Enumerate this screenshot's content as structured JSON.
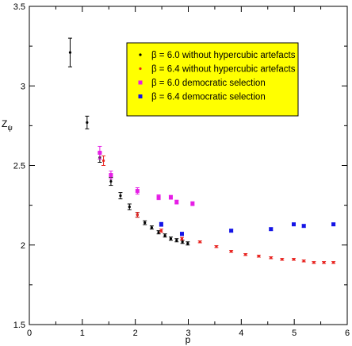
{
  "chart_data": {
    "type": "scatter",
    "title": "",
    "xlabel": "p",
    "ylabel": "Z",
    "ylabel_subscript": "ψ",
    "xlim": [
      0,
      6
    ],
    "ylim": [
      1.5,
      3.5
    ],
    "x_ticks": [
      0,
      1,
      2,
      3,
      4,
      5,
      6
    ],
    "y_ticks": [
      1.5,
      2,
      2.5,
      3,
      3.5
    ],
    "x_tick_labels": [
      "0",
      "1",
      "2",
      "3",
      "4",
      "5",
      "6"
    ],
    "y_tick_labels": [
      "1.5",
      "2",
      "2.5",
      "3",
      "3.5"
    ],
    "grid": false,
    "error_bars": true,
    "legend": {
      "placement": "top-right",
      "background": "#ffff00",
      "entries": [
        "β = 6.0  without hypercubic artefacts",
        "β = 6.4  without hypercubic artefacts",
        "β = 6.0  democratic selection",
        "β = 6.4  democratic selection"
      ]
    },
    "series": [
      {
        "name": "β = 6.0  without hypercubic artefacts",
        "color": "#000000",
        "marker": "dot",
        "points": [
          {
            "x": 0.77,
            "y": 3.21,
            "err": 0.09
          },
          {
            "x": 1.09,
            "y": 2.77,
            "err": 0.04
          },
          {
            "x": 1.33,
            "y": 2.55,
            "err": 0.03
          },
          {
            "x": 1.54,
            "y": 2.4,
            "err": 0.025
          },
          {
            "x": 1.72,
            "y": 2.31,
            "err": 0.02
          },
          {
            "x": 1.89,
            "y": 2.24,
            "err": 0.018
          },
          {
            "x": 2.04,
            "y": 2.19,
            "err": 0.015
          },
          {
            "x": 2.18,
            "y": 2.14,
            "err": 0.012
          },
          {
            "x": 2.31,
            "y": 2.11,
            "err": 0.01
          },
          {
            "x": 2.44,
            "y": 2.08,
            "err": 0.01
          },
          {
            "x": 2.56,
            "y": 2.06,
            "err": 0.01
          },
          {
            "x": 2.67,
            "y": 2.04,
            "err": 0.01
          },
          {
            "x": 2.78,
            "y": 2.03,
            "err": 0.01
          },
          {
            "x": 2.89,
            "y": 2.02,
            "err": 0.01
          },
          {
            "x": 2.99,
            "y": 2.01,
            "err": 0.01
          }
        ]
      },
      {
        "name": "β = 6.4  without hypercubic artefacts",
        "color": "#e8231f",
        "marker": "dot",
        "points": [
          {
            "x": 1.4,
            "y": 2.53,
            "err": 0.03
          },
          {
            "x": 2.04,
            "y": 2.19,
            "err": 0.015
          },
          {
            "x": 2.49,
            "y": 2.09,
            "err": 0.01
          },
          {
            "x": 2.88,
            "y": 2.04,
            "err": 0.008
          },
          {
            "x": 3.22,
            "y": 2.02,
            "err": 0.006
          },
          {
            "x": 3.53,
            "y": 1.99,
            "err": 0.006
          },
          {
            "x": 3.81,
            "y": 1.96,
            "err": 0.006
          },
          {
            "x": 4.08,
            "y": 1.94,
            "err": 0.006
          },
          {
            "x": 4.33,
            "y": 1.93,
            "err": 0.006
          },
          {
            "x": 4.56,
            "y": 1.92,
            "err": 0.006
          },
          {
            "x": 4.77,
            "y": 1.91,
            "err": 0.006
          },
          {
            "x": 4.99,
            "y": 1.91,
            "err": 0.006
          },
          {
            "x": 5.18,
            "y": 1.9,
            "err": 0.006
          },
          {
            "x": 5.37,
            "y": 1.89,
            "err": 0.006
          },
          {
            "x": 5.56,
            "y": 1.89,
            "err": 0.006
          },
          {
            "x": 5.74,
            "y": 1.89,
            "err": 0.006
          }
        ]
      },
      {
        "name": "β = 6.0  democratic selection",
        "color": "#e61ee6",
        "marker": "square",
        "points": [
          {
            "x": 1.33,
            "y": 2.58,
            "err": 0.04
          },
          {
            "x": 1.54,
            "y": 2.44,
            "err": 0.025
          },
          {
            "x": 2.04,
            "y": 2.34,
            "err": 0.02
          },
          {
            "x": 2.44,
            "y": 2.3,
            "err": 0.015
          },
          {
            "x": 2.67,
            "y": 2.3,
            "err": 0.012
          },
          {
            "x": 2.78,
            "y": 2.27,
            "err": 0.012
          },
          {
            "x": 3.08,
            "y": 2.26,
            "err": 0.012
          }
        ]
      },
      {
        "name": "β = 6.4  democratic selection",
        "color": "#1414e6",
        "marker": "square",
        "points": [
          {
            "x": 2.49,
            "y": 2.13,
            "err": 0.012
          },
          {
            "x": 2.88,
            "y": 2.07,
            "err": 0.01
          },
          {
            "x": 3.81,
            "y": 2.09,
            "err": 0.008
          },
          {
            "x": 4.56,
            "y": 2.1,
            "err": 0.008
          },
          {
            "x": 4.99,
            "y": 2.13,
            "err": 0.008
          },
          {
            "x": 5.18,
            "y": 2.12,
            "err": 0.008
          },
          {
            "x": 5.74,
            "y": 2.13,
            "err": 0.008
          }
        ]
      }
    ]
  }
}
